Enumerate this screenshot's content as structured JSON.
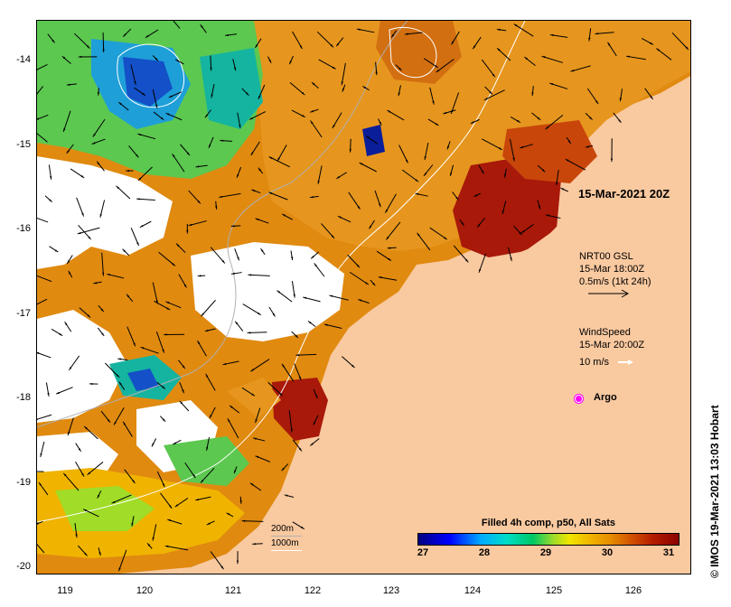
{
  "axes": {
    "y_ticks": [
      "-14",
      "-15",
      "-16",
      "-17",
      "-18",
      "-19",
      "-20"
    ],
    "x_ticks": [
      "119",
      "120",
      "121",
      "122",
      "123",
      "124",
      "125",
      "126"
    ]
  },
  "timestamp": "15-Mar-2021 20Z",
  "current_legend": {
    "line1": "NRT00 GSL",
    "line2": "15-Mar 18:00Z",
    "line3": "0.5m/s (1kt 24h)"
  },
  "wind_legend": {
    "line1": "WindSpeed",
    "line2": "15-Mar 20:00Z",
    "line3": "10 m/s"
  },
  "argo_label": "Argo",
  "depth_contours": {
    "label1": "200m",
    "label2": "1000m"
  },
  "colorbar": {
    "title": "Filled 4h comp, p50, All Sats",
    "ticks": [
      "27",
      "28",
      "29",
      "30",
      "31"
    ],
    "min": 27,
    "max": 31.5
  },
  "credit": "© IMOS 19-Mar-2021 13:03 Hobart",
  "colors": {
    "land": "#f9c9a0",
    "no_data": "#ffffff",
    "current_arrow": "#000000",
    "wind_arrow": "#ffffff",
    "argo": "#ff00ff"
  }
}
